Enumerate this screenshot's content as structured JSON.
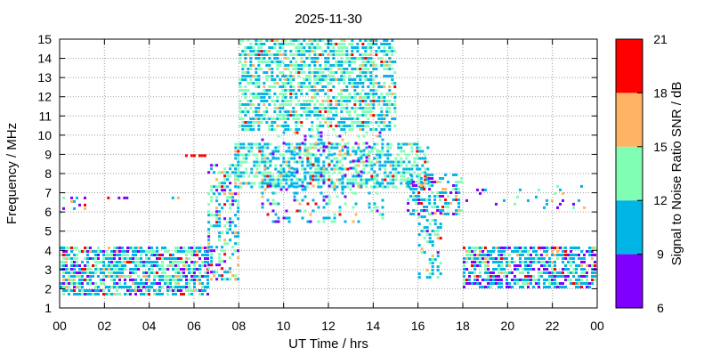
{
  "chart_data": {
    "type": "heatmap",
    "title": "2025-11-30",
    "xlabel": "UT Time / hrs",
    "ylabel": "Frequency / MHz",
    "xlim": [
      0,
      24
    ],
    "ylim": [
      1,
      15
    ],
    "x_ticks": [
      "00",
      "02",
      "04",
      "06",
      "08",
      "10",
      "12",
      "14",
      "16",
      "18",
      "20",
      "22",
      "00"
    ],
    "y_ticks": [
      "1",
      "2",
      "3",
      "4",
      "5",
      "6",
      "7",
      "8",
      "9",
      "10",
      "11",
      "12",
      "13",
      "14",
      "15"
    ],
    "grid": true,
    "colorbar": {
      "label": "Signal to Noise Ratio SNR / dB",
      "ticks": [
        "6",
        "9",
        "12",
        "15",
        "18",
        "21"
      ],
      "bands": [
        {
          "from": 6,
          "to": 9,
          "color": "#8000ff"
        },
        {
          "from": 9,
          "to": 12,
          "color": "#00b4e6"
        },
        {
          "from": 12,
          "to": 15,
          "color": "#80ffb4"
        },
        {
          "from": 15,
          "to": 18,
          "color": "#ffb464"
        },
        {
          "from": 18,
          "to": 21,
          "color": "#ff0000"
        }
      ]
    },
    "regions": [
      {
        "name": "night-band-early",
        "x": [
          0,
          6.6
        ],
        "y": [
          1.6,
          4.2
        ],
        "snr_mean": 11,
        "density": 0.75
      },
      {
        "name": "morning-rise",
        "x": [
          6.6,
          8
        ],
        "y": [
          2.5,
          8.5
        ],
        "snr_mean": 11,
        "density": 0.45
      },
      {
        "name": "day-upper",
        "x": [
          8,
          15
        ],
        "y": [
          10.2,
          15
        ],
        "snr_mean": 12,
        "density": 0.65
      },
      {
        "name": "day-f-band",
        "x": [
          7.8,
          16.5
        ],
        "y": [
          7.2,
          9.6
        ],
        "snr_mean": 12,
        "density": 0.6
      },
      {
        "name": "day-sparse",
        "x": [
          9,
          14.5
        ],
        "y": [
          5.5,
          10.2
        ],
        "snr_mean": 10.5,
        "density": 0.2
      },
      {
        "name": "afternoon-fall",
        "x": [
          15.5,
          18
        ],
        "y": [
          5.8,
          8
        ],
        "snr_mean": 11,
        "density": 0.5
      },
      {
        "name": "evening-drop",
        "x": [
          16,
          17
        ],
        "y": [
          2.5,
          6
        ],
        "snr_mean": 11,
        "density": 0.35
      },
      {
        "name": "night-band-late",
        "x": [
          18,
          24
        ],
        "y": [
          2,
          4.2
        ],
        "snr_mean": 10.5,
        "density": 0.7
      },
      {
        "name": "isolated-0.3MHz-6.2",
        "x": [
          0,
          1.2
        ],
        "y": [
          6,
          6.8
        ],
        "snr_mean": 10,
        "density": 0.15
      },
      {
        "name": "isolated-2h-6.7",
        "x": [
          2,
          3.2
        ],
        "y": [
          6.6,
          6.8
        ],
        "snr_mean": 11,
        "density": 0.6
      },
      {
        "name": "isolated-5h-6.7",
        "x": [
          5,
          5.6
        ],
        "y": [
          6.6,
          6.8
        ],
        "snr_mean": 13,
        "density": 0.7
      },
      {
        "name": "isolated-5.6h-8.9",
        "x": [
          5.6,
          6.6
        ],
        "y": [
          8.8,
          9
        ],
        "snr_mean": 20,
        "density": 0.8
      },
      {
        "name": "late-sparse-6.2",
        "x": [
          18,
          24
        ],
        "y": [
          6.1,
          7.4
        ],
        "snr_mean": 10,
        "density": 0.08
      }
    ]
  }
}
